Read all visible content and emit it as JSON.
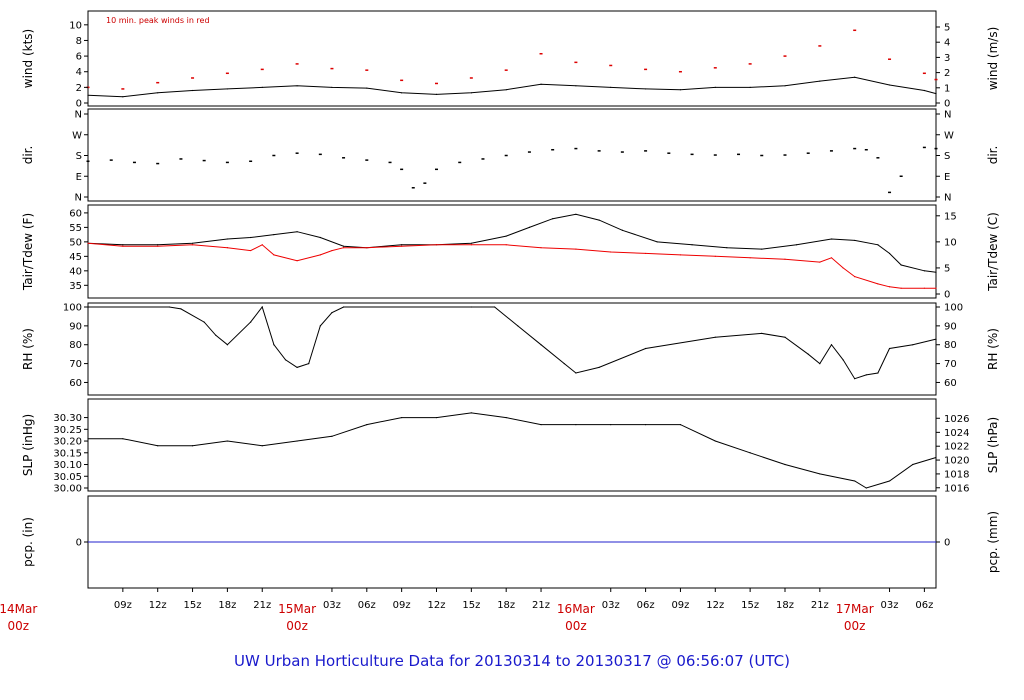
{
  "chart_data": {
    "type": "line",
    "title": "UW Urban Horticulture Data for 20130314  to  20130317 @ 06:56:07  (UTC)",
    "x_range_hours": [
      6.0,
      79.0
    ],
    "x_ticks": [
      {
        "h": 9,
        "label": "09z"
      },
      {
        "h": 12,
        "label": "12z"
      },
      {
        "h": 15,
        "label": "15z"
      },
      {
        "h": 18,
        "label": "18z"
      },
      {
        "h": 21,
        "label": "21z"
      },
      {
        "h": 27,
        "label": "03z"
      },
      {
        "h": 30,
        "label": "06z"
      },
      {
        "h": 33,
        "label": "09z"
      },
      {
        "h": 36,
        "label": "12z"
      },
      {
        "h": 39,
        "label": "15z"
      },
      {
        "h": 42,
        "label": "18z"
      },
      {
        "h": 45,
        "label": "21z"
      },
      {
        "h": 51,
        "label": "03z"
      },
      {
        "h": 54,
        "label": "06z"
      },
      {
        "h": 57,
        "label": "09z"
      },
      {
        "h": 60,
        "label": "12z"
      },
      {
        "h": 63,
        "label": "15z"
      },
      {
        "h": 66,
        "label": "18z"
      },
      {
        "h": 69,
        "label": "21z"
      },
      {
        "h": 75,
        "label": "03z"
      },
      {
        "h": 78,
        "label": "06z"
      }
    ],
    "date_labels": [
      {
        "h": 0,
        "line1": "14Mar",
        "line2": "00z"
      },
      {
        "h": 24,
        "line1": "15Mar",
        "line2": "00z"
      },
      {
        "h": 48,
        "line1": "16Mar",
        "line2": "00z"
      },
      {
        "h": 72,
        "line1": "17Mar",
        "line2": "00z"
      }
    ],
    "panels": [
      {
        "id": "wind",
        "ylabel_left": "wind (kts)",
        "ylabel_right": "wind (m/s)",
        "ylim": [
          0,
          11
        ],
        "left_ticks": [
          {
            "v": 0,
            "label": "0"
          },
          {
            "v": 2,
            "label": "2"
          },
          {
            "v": 4,
            "label": "4"
          },
          {
            "v": 6,
            "label": "6"
          },
          {
            "v": 8,
            "label": "8"
          },
          {
            "v": 10,
            "label": "10"
          }
        ],
        "right_ticks": [
          {
            "v": 0,
            "label": "0"
          },
          {
            "v": 1.944,
            "label": "1"
          },
          {
            "v": 3.888,
            "label": "2"
          },
          {
            "v": 5.832,
            "label": "3"
          },
          {
            "v": 7.776,
            "label": "4"
          },
          {
            "v": 9.72,
            "label": "5"
          }
        ],
        "annotation": "10 min. peak winds in red",
        "series": [
          {
            "kind": "line",
            "color": "#000000",
            "x": [
              6,
              9,
              12,
              15,
              18,
              21,
              24,
              27,
              30,
              33,
              36,
              39,
              42,
              45,
              48,
              51,
              54,
              57,
              60,
              63,
              66,
              69,
              72,
              75,
              78,
              79
            ],
            "y": [
              1.0,
              0.8,
              1.3,
              1.6,
              1.8,
              2.0,
              2.2,
              2.0,
              1.9,
              1.3,
              1.1,
              1.3,
              1.7,
              2.4,
              2.2,
              2.0,
              1.8,
              1.7,
              2.0,
              2.0,
              2.2,
              2.8,
              3.3,
              2.3,
              1.6,
              1.2
            ]
          },
          {
            "kind": "points",
            "color": "#dd0000",
            "x": [
              6,
              9,
              12,
              15,
              18,
              21,
              24,
              27,
              30,
              33,
              36,
              39,
              42,
              45,
              48,
              51,
              54,
              57,
              60,
              63,
              66,
              69,
              72,
              75,
              78,
              79
            ],
            "y": [
              2.0,
              1.8,
              2.6,
              3.2,
              3.8,
              4.3,
              5.0,
              4.4,
              4.2,
              2.9,
              2.5,
              3.2,
              4.2,
              6.3,
              5.2,
              4.8,
              4.3,
              4.0,
              4.5,
              5.0,
              6.0,
              7.3,
              9.3,
              5.6,
              3.8,
              3.0
            ]
          }
        ]
      },
      {
        "id": "dir",
        "ylabel_left": "dir.",
        "ylabel_right": "dir.",
        "ylim": [
          0,
          360
        ],
        "left_ticks": [
          {
            "v": 0,
            "label": "N"
          },
          {
            "v": 90,
            "label": "E"
          },
          {
            "v": 180,
            "label": "S"
          },
          {
            "v": 270,
            "label": "W"
          },
          {
            "v": 360,
            "label": "N"
          }
        ],
        "right_ticks": [
          {
            "v": 0,
            "label": "N"
          },
          {
            "v": 90,
            "label": "E"
          },
          {
            "v": 180,
            "label": "S"
          },
          {
            "v": 270,
            "label": "W"
          },
          {
            "v": 360,
            "label": "N"
          }
        ],
        "series": [
          {
            "kind": "points",
            "color": "#000000",
            "x": [
              6,
              8,
              10,
              12,
              14,
              16,
              18,
              20,
              22,
              24,
              26,
              28,
              30,
              32,
              33,
              34,
              35,
              36,
              38,
              40,
              42,
              44,
              46,
              48,
              50,
              52,
              54,
              56,
              58,
              60,
              62,
              64,
              66,
              68,
              70,
              72,
              73,
              74,
              75,
              76,
              78,
              79
            ],
            "y": [
              155,
              160,
              150,
              145,
              165,
              158,
              150,
              155,
              180,
              190,
              185,
              170,
              160,
              150,
              120,
              40,
              60,
              120,
              150,
              165,
              180,
              195,
              205,
              210,
              200,
              195,
              200,
              190,
              185,
              182,
              185,
              180,
              182,
              190,
              200,
              210,
              205,
              170,
              20,
              90,
              215,
              210
            ]
          }
        ]
      },
      {
        "id": "temp",
        "ylabel_left": "Tair/Tdew (F)",
        "ylabel_right": "Tair/Tdew (C)",
        "ylim": [
          32,
          61
        ],
        "left_ticks": [
          {
            "v": 35,
            "label": "35"
          },
          {
            "v": 40,
            "label": "40"
          },
          {
            "v": 45,
            "label": "45"
          },
          {
            "v": 50,
            "label": "50"
          },
          {
            "v": 55,
            "label": "55"
          },
          {
            "v": 60,
            "label": "60"
          }
        ],
        "right_ticks": [
          {
            "v": 32,
            "label": "0"
          },
          {
            "v": 41,
            "label": "5"
          },
          {
            "v": 50,
            "label": "10"
          },
          {
            "v": 59,
            "label": "15"
          }
        ],
        "series": [
          {
            "name": "Tair",
            "kind": "line",
            "color": "#000000",
            "x": [
              6,
              9,
              12,
              15,
              18,
              20,
              22,
              24,
              26,
              28,
              30,
              33,
              36,
              39,
              42,
              44,
              46,
              48,
              50,
              52,
              55,
              58,
              61,
              64,
              67,
              70,
              72,
              74,
              75,
              76,
              78,
              79
            ],
            "y": [
              49.5,
              49.0,
              49.0,
              49.5,
              51.0,
              51.5,
              52.5,
              53.5,
              51.5,
              48.5,
              48.0,
              49.0,
              49.0,
              49.5,
              52.0,
              55.0,
              58.0,
              59.5,
              57.5,
              54.0,
              50.0,
              49.0,
              48.0,
              47.5,
              49.0,
              51.0,
              50.5,
              49.0,
              46.0,
              42.0,
              40.0,
              39.5
            ]
          },
          {
            "name": "Tdew",
            "kind": "line",
            "color": "#ee0000",
            "x": [
              6,
              9,
              12,
              15,
              18,
              20,
              21,
              22,
              24,
              26,
              27,
              28,
              30,
              33,
              36,
              39,
              42,
              45,
              48,
              51,
              54,
              57,
              60,
              63,
              66,
              69,
              70,
              71,
              72,
              74,
              75,
              76,
              78,
              79
            ],
            "y": [
              49.5,
              48.5,
              48.5,
              49.0,
              48.0,
              47.0,
              49.0,
              45.5,
              43.5,
              45.5,
              47.0,
              48.0,
              48.0,
              48.5,
              49.0,
              49.0,
              49.0,
              48.0,
              47.5,
              46.5,
              46.0,
              45.5,
              45.0,
              44.5,
              44.0,
              43.0,
              44.5,
              41.0,
              38.0,
              35.5,
              34.5,
              34.0,
              34.0,
              34.0
            ]
          }
        ]
      },
      {
        "id": "rh",
        "ylabel_left": "RH (%)",
        "ylabel_right": "RH (%)",
        "ylim": [
          56,
          100
        ],
        "left_ticks": [
          {
            "v": 60,
            "label": "60"
          },
          {
            "v": 70,
            "label": "70"
          },
          {
            "v": 80,
            "label": "80"
          },
          {
            "v": 90,
            "label": "90"
          },
          {
            "v": 100,
            "label": "100"
          }
        ],
        "right_ticks": [
          {
            "v": 60,
            "label": "60"
          },
          {
            "v": 70,
            "label": "70"
          },
          {
            "v": 80,
            "label": "80"
          },
          {
            "v": 90,
            "label": "90"
          },
          {
            "v": 100,
            "label": "100"
          }
        ],
        "series": [
          {
            "kind": "line",
            "color": "#000000",
            "x": [
              6,
              13,
              14,
              16,
              17,
              18,
              20,
              21,
              22,
              23,
              24,
              25,
              26,
              27,
              28,
              39,
              41,
              43,
              45,
              47,
              48,
              50,
              54,
              60,
              64,
              66,
              68,
              69,
              70,
              71,
              72,
              73,
              74,
              75,
              77,
              79
            ],
            "y": [
              100,
              100,
              99,
              92,
              85,
              80,
              92,
              100,
              80,
              72,
              68,
              70,
              90,
              97,
              100,
              100,
              100,
              90,
              80,
              70,
              65,
              68,
              78,
              84,
              86,
              84,
              75,
              70,
              80,
              72,
              62,
              64,
              65,
              78,
              80,
              83
            ]
          }
        ]
      },
      {
        "id": "slp",
        "ylabel_left": "SLP (inHg)",
        "ylabel_right": "SLP (hPa)",
        "ylim": [
          30.0,
          30.345
        ],
        "left_ticks": [
          {
            "v": 30.0,
            "label": "30.00"
          },
          {
            "v": 30.05,
            "label": "30.05"
          },
          {
            "v": 30.1,
            "label": "30.10"
          },
          {
            "v": 30.15,
            "label": "30.15"
          },
          {
            "v": 30.2,
            "label": "30.20"
          },
          {
            "v": 30.25,
            "label": "30.25"
          },
          {
            "v": 30.3,
            "label": "30.30"
          }
        ],
        "right_ticks": [
          {
            "v": 30.001,
            "label": "1016"
          },
          {
            "v": 30.06,
            "label": "1018"
          },
          {
            "v": 30.119,
            "label": "1020"
          },
          {
            "v": 30.178,
            "label": "1022"
          },
          {
            "v": 30.237,
            "label": "1024"
          },
          {
            "v": 30.297,
            "label": "1026"
          }
        ],
        "series": [
          {
            "kind": "line",
            "color": "#000000",
            "x": [
              6,
              9,
              12,
              15,
              18,
              21,
              24,
              27,
              30,
              33,
              36,
              39,
              42,
              45,
              48,
              51,
              54,
              57,
              60,
              63,
              66,
              69,
              72,
              73,
              75,
              77,
              79
            ],
            "y": [
              30.21,
              30.21,
              30.18,
              30.18,
              30.2,
              30.18,
              30.2,
              30.22,
              30.27,
              30.3,
              30.3,
              30.32,
              30.3,
              30.27,
              30.27,
              30.27,
              30.27,
              30.27,
              30.2,
              30.15,
              30.1,
              30.06,
              30.03,
              30.0,
              30.03,
              30.1,
              30.13
            ]
          }
        ]
      },
      {
        "id": "pcp",
        "ylabel_left": "pcp. (in)",
        "ylabel_right": "pcp. (mm)",
        "ylim": [
          -1,
          1
        ],
        "left_ticks": [
          {
            "v": 0,
            "label": "0"
          }
        ],
        "right_ticks": [
          {
            "v": 0,
            "label": "0"
          }
        ],
        "series": [
          {
            "kind": "line",
            "color": "#2222cc",
            "x": [
              6,
              79
            ],
            "y": [
              0,
              0
            ]
          }
        ]
      }
    ]
  }
}
